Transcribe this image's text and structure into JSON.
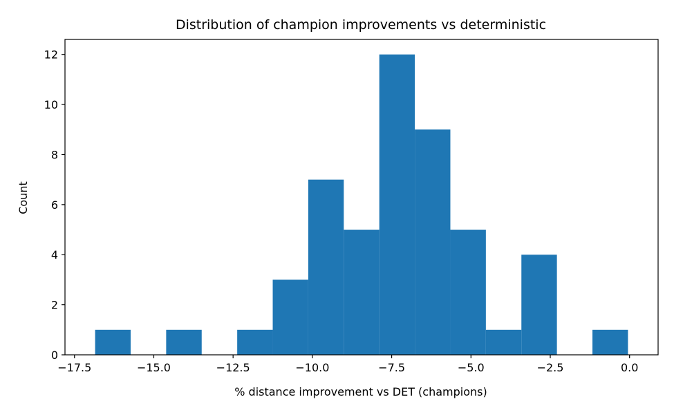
{
  "chart_data": {
    "type": "bar",
    "title": "Distribution of champion improvements vs deterministic",
    "xlabel": "% distance improvement vs DET (champions)",
    "ylabel": "Count",
    "xlim": [
      -17.8,
      0.9
    ],
    "ylim": [
      0,
      12.6
    ],
    "bar_color": "#1f77b4",
    "grid": false,
    "xticks": [
      -17.5,
      -15.0,
      -12.5,
      -10.0,
      -7.5,
      -5.0,
      -2.5,
      0.0
    ],
    "xtick_labels": [
      "−17.5",
      "−15.0",
      "−12.5",
      "−10.0",
      "−7.5",
      "−5.0",
      "−2.5",
      "0.0"
    ],
    "yticks": [
      0,
      2,
      4,
      6,
      8,
      10,
      12
    ],
    "ytick_labels": [
      "0",
      "2",
      "4",
      "6",
      "8",
      "10",
      "12"
    ],
    "bins": [
      {
        "x0": -16.85,
        "x1": -15.73,
        "count": 1
      },
      {
        "x0": -15.73,
        "x1": -14.61,
        "count": 0
      },
      {
        "x0": -14.61,
        "x1": -13.49,
        "count": 1
      },
      {
        "x0": -13.49,
        "x1": -12.37,
        "count": 0
      },
      {
        "x0": -12.37,
        "x1": -11.25,
        "count": 1
      },
      {
        "x0": -11.25,
        "x1": -10.13,
        "count": 3
      },
      {
        "x0": -10.13,
        "x1": -9.01,
        "count": 7
      },
      {
        "x0": -9.01,
        "x1": -7.89,
        "count": 5
      },
      {
        "x0": -7.89,
        "x1": -6.77,
        "count": 12
      },
      {
        "x0": -6.77,
        "x1": -5.65,
        "count": 9
      },
      {
        "x0": -5.65,
        "x1": -4.53,
        "count": 5
      },
      {
        "x0": -4.53,
        "x1": -3.41,
        "count": 1
      },
      {
        "x0": -3.41,
        "x1": -2.29,
        "count": 4
      },
      {
        "x0": -2.29,
        "x1": -1.17,
        "count": 0
      },
      {
        "x0": -1.17,
        "x1": -0.05,
        "count": 1
      }
    ]
  }
}
